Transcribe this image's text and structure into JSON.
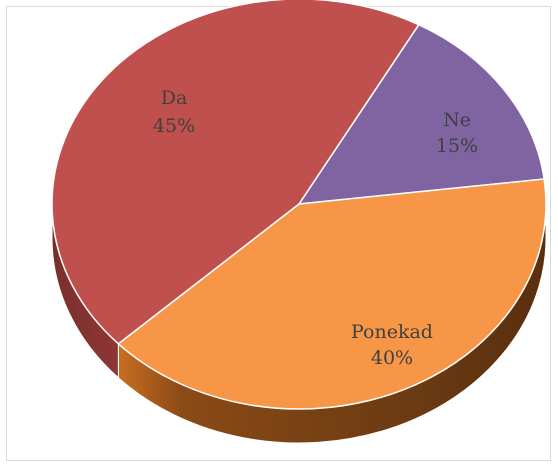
{
  "chart_data": {
    "type": "pie",
    "style": "3d",
    "title": "",
    "slices": [
      {
        "label": "Ne",
        "value": 15,
        "value_label": "15%",
        "color": "#8064A2"
      },
      {
        "label": "Ponekad",
        "value": 40,
        "value_label": "40%",
        "color": "#F79646"
      },
      {
        "label": "Da",
        "value": 45,
        "value_label": "45%",
        "color": "#C0504D"
      }
    ],
    "legend": "none",
    "data_labels": "inside",
    "border": true
  }
}
